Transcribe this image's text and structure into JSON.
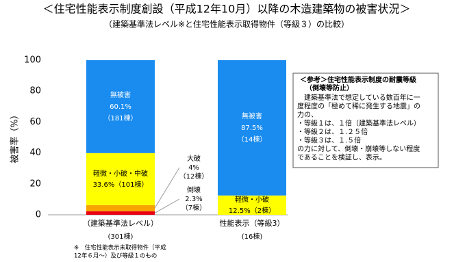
{
  "chart_data": {
    "type": "stacked_bar",
    "title": "＜住宅性能表示制度創設（平成12年10月）以降の木造建築物の被害状況＞",
    "subtitle": "（建築基準法レベル※と住宅性能表示取得物件（等級３）の比較）",
    "y_label": "被害率（%）",
    "categories": [
      "（建築基準法レベル）",
      "性能表示（等級3）"
    ],
    "category_counts": [
      "(301棟)",
      "(16棟)"
    ],
    "ylim": [
      0,
      100
    ],
    "yticks": [
      0,
      20,
      40,
      60,
      80,
      100
    ],
    "series": [
      {
        "name": "倒壊",
        "color": "#e60012",
        "values": [
          2.3,
          0
        ],
        "value_labels": [
          "2.3%",
          null
        ],
        "counts": [
          "（7棟）",
          null
        ]
      },
      {
        "name": "大破",
        "color": "#f7a300",
        "values": [
          4,
          0
        ],
        "value_labels": [
          "4%",
          null
        ],
        "counts": [
          "（12棟）",
          null
        ]
      },
      {
        "labels": [
          "軽微・小破・中破",
          "軽微・小破"
        ],
        "color": "#ffff00",
        "values": [
          33.6,
          12.5
        ],
        "value_labels": [
          "33.6%",
          "12.5%"
        ],
        "counts": [
          "（101棟）",
          "（2棟）"
        ]
      },
      {
        "name": "無被害",
        "color": "#1a8cf0",
        "values": [
          60.1,
          87.5
        ],
        "value_labels": [
          "60.1%",
          "87.5%"
        ],
        "counts": [
          "（181棟）",
          "（14棟）"
        ]
      }
    ],
    "footnote": [
      "※　住宅性能表示未取得物件（平成",
      "12年６月～）及び等級１のもの"
    ],
    "note": {
      "title": [
        "＜参考＞住宅性能表示制度の耐震等級",
        "（倒壊等防止）"
      ],
      "lines": [
        "　建築基準法で想定している数百年に一",
        "度程度の「極めて稀に発生する地震」の",
        "力の、",
        "・等級１は、１倍（建築基準法レベル）",
        "・等級２は、１.２５倍",
        "・等級３は、１.５倍",
        "の力に対して、倒壊・崩壊等しない程度",
        "であることを検証し、表示。"
      ]
    }
  }
}
